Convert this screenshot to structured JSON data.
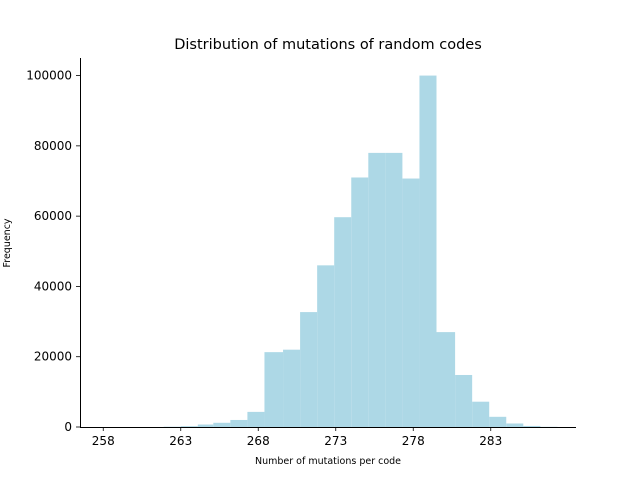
{
  "chart_data": {
    "type": "bar",
    "title": "Distribution of mutations of random codes",
    "xlabel": "Number of mutations per code",
    "ylabel": "Frequency",
    "xlim": [
      256.5,
      288.5
    ],
    "ylim": [
      0,
      105000
    ],
    "x_ticks": [
      258,
      263,
      268,
      273,
      278,
      283
    ],
    "y_ticks": [
      0,
      20000,
      40000,
      60000,
      80000,
      100000
    ],
    "bar_color": "#add8e6",
    "grid": false,
    "bins": [
      {
        "left": 261.9,
        "right": 263.0,
        "value": 80
      },
      {
        "left": 263.0,
        "right": 264.1,
        "value": 230
      },
      {
        "left": 264.1,
        "right": 265.1,
        "value": 700
      },
      {
        "left": 265.1,
        "right": 266.2,
        "value": 1200
      },
      {
        "left": 266.2,
        "right": 267.3,
        "value": 2000
      },
      {
        "left": 267.3,
        "right": 268.4,
        "value": 4300
      },
      {
        "left": 268.4,
        "right": 269.6,
        "value": 21300
      },
      {
        "left": 269.6,
        "right": 270.7,
        "value": 22000
      },
      {
        "left": 270.7,
        "right": 271.8,
        "value": 32700
      },
      {
        "left": 271.8,
        "right": 272.9,
        "value": 46000
      },
      {
        "left": 272.9,
        "right": 274.0,
        "value": 59700
      },
      {
        "left": 274.0,
        "right": 275.1,
        "value": 71000
      },
      {
        "left": 275.1,
        "right": 276.2,
        "value": 78000
      },
      {
        "left": 276.2,
        "right": 277.3,
        "value": 78000
      },
      {
        "left": 277.3,
        "right": 278.4,
        "value": 70700
      },
      {
        "left": 278.4,
        "right": 279.5,
        "value": 100000
      },
      {
        "left": 279.5,
        "right": 280.7,
        "value": 27000
      },
      {
        "left": 280.7,
        "right": 281.8,
        "value": 14800
      },
      {
        "left": 281.8,
        "right": 282.9,
        "value": 7200
      },
      {
        "left": 282.9,
        "right": 284.0,
        "value": 2900
      },
      {
        "left": 284.0,
        "right": 285.1,
        "value": 1000
      },
      {
        "left": 285.1,
        "right": 286.2,
        "value": 300
      },
      {
        "left": 286.2,
        "right": 287.3,
        "value": 60
      }
    ]
  }
}
